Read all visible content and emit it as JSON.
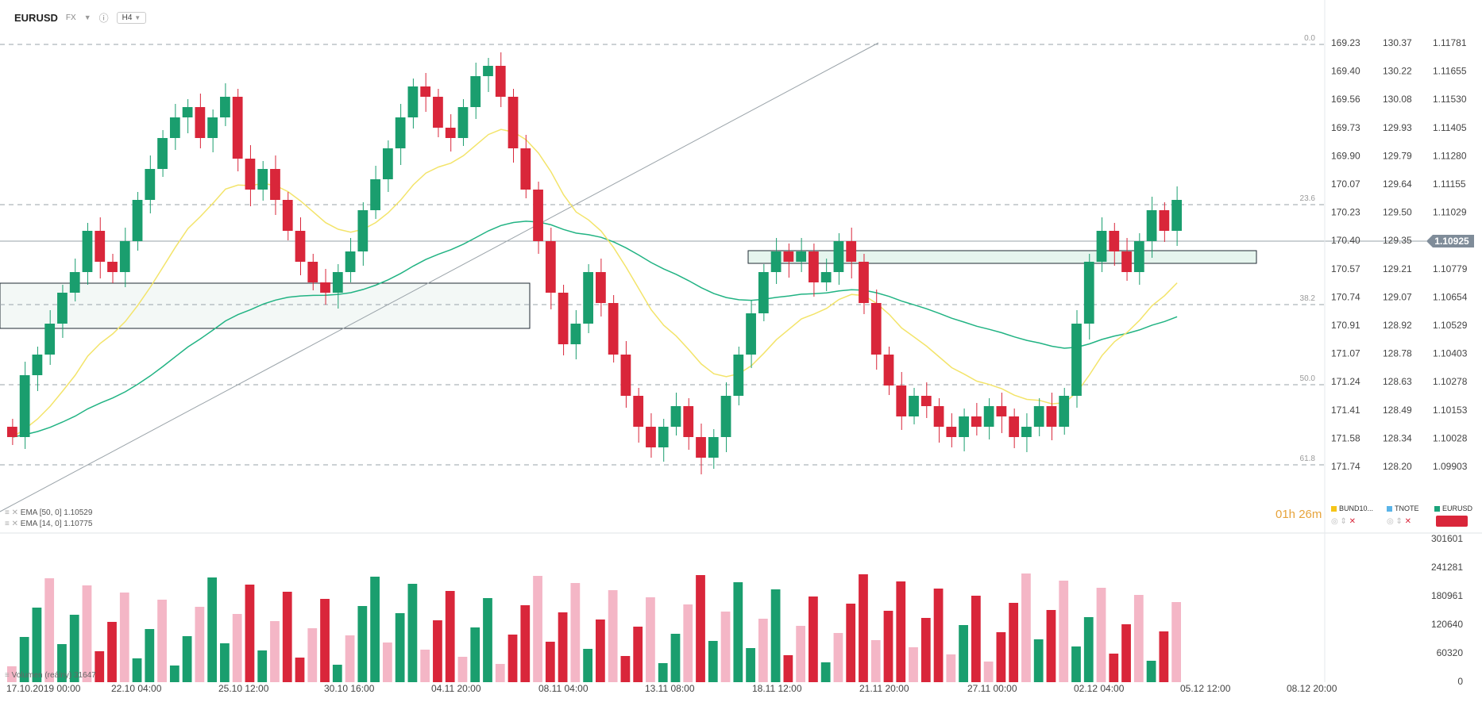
{
  "header": {
    "symbol": "EURUSD",
    "market": "FX",
    "timeframe": "H4"
  },
  "indicators": {
    "ema50": "EMA  [50, 0]  1.10529",
    "ema14": "EMA  [14, 0]  1.10775",
    "volume": "Volumen (reálny)  31647"
  },
  "timer": "01h 26m",
  "compare": {
    "items": [
      "BUND10...",
      "TNOTE",
      "EURUSD"
    ],
    "colors": [
      "#f5c518",
      "#5ab4e8",
      "#1aa37a"
    ]
  },
  "colors": {
    "up": "#1a9e6e",
    "down": "#d9263a",
    "ema50": "#21b383",
    "ema14": "#f3e46a",
    "lastPrice": "#7f8c99",
    "zone": "#e9f6f1",
    "volUp": "#1a9e6e",
    "volDown": "#d9263a",
    "volPink": "#f4b6c6"
  },
  "chart_data": {
    "type": "candlestick",
    "x_tick_labels": [
      "17.10.2019  00:00",
      "22.10  04:00",
      "25.10  12:00",
      "30.10  16:00",
      "04.11  20:00",
      "08.11  04:00",
      "13.11  08:00",
      "18.11  12:00",
      "21.11  20:00",
      "27.11  00:00",
      "02.12  04:00",
      "05.12  12:00",
      "08.12  20:00"
    ],
    "y_scale_main": [
      "1.11781",
      "1.11655",
      "1.11530",
      "1.11405",
      "1.11280",
      "1.11155",
      "1.11029",
      "1.10925",
      "1.10779",
      "1.10654",
      "1.10529",
      "1.10403",
      "1.10278",
      "1.10153",
      "1.10028",
      "1.09903"
    ],
    "y_scale_tnote": [
      "130.37",
      "130.22",
      "130.08",
      "129.93",
      "129.79",
      "129.64",
      "129.50",
      "129.35",
      "129.21",
      "129.07",
      "128.92",
      "128.78",
      "128.63",
      "128.49",
      "128.34",
      "128.20"
    ],
    "y_scale_bund": [
      "169.23",
      "169.40",
      "169.56",
      "169.73",
      "169.90",
      "170.07",
      "170.23",
      "170.40",
      "170.57",
      "170.74",
      "170.91",
      "171.07",
      "171.24",
      "171.41",
      "171.58",
      "171.74"
    ],
    "last_price": "1.10925",
    "fib_levels": [
      "0.0",
      "23.6",
      "38.2",
      "50.0",
      "61.8"
    ],
    "volume_scale": [
      "301601",
      "241281",
      "180961",
      "120640",
      "60320",
      "0"
    ],
    "ohlc_shape": [
      [
        0.4,
        0.3
      ],
      [
        0.3,
        0.9
      ],
      [
        0.9,
        1.1
      ],
      [
        1.1,
        1.4
      ],
      [
        1.4,
        1.7
      ],
      [
        1.7,
        1.9
      ],
      [
        1.9,
        2.3
      ],
      [
        2.3,
        2.0
      ],
      [
        2.0,
        1.9
      ],
      [
        1.9,
        2.2
      ],
      [
        2.2,
        2.6
      ],
      [
        2.6,
        2.9
      ],
      [
        2.9,
        3.2
      ],
      [
        3.2,
        3.4
      ],
      [
        3.4,
        3.5
      ],
      [
        3.5,
        3.2
      ],
      [
        3.2,
        3.4
      ],
      [
        3.4,
        3.6
      ],
      [
        3.6,
        3.0
      ],
      [
        3.0,
        2.7
      ],
      [
        2.7,
        2.9
      ],
      [
        2.9,
        2.6
      ],
      [
        2.6,
        2.3
      ],
      [
        2.3,
        2.0
      ],
      [
        2.0,
        1.8
      ],
      [
        1.8,
        1.7
      ],
      [
        1.7,
        1.9
      ],
      [
        1.9,
        2.1
      ],
      [
        2.1,
        2.5
      ],
      [
        2.5,
        2.8
      ],
      [
        2.8,
        3.1
      ],
      [
        3.1,
        3.4
      ],
      [
        3.4,
        3.7
      ],
      [
        3.7,
        3.6
      ],
      [
        3.6,
        3.3
      ],
      [
        3.3,
        3.2
      ],
      [
        3.2,
        3.5
      ],
      [
        3.5,
        3.8
      ],
      [
        3.8,
        3.9
      ],
      [
        3.9,
        3.6
      ],
      [
        3.6,
        3.1
      ],
      [
        3.1,
        2.7
      ],
      [
        2.7,
        2.2
      ],
      [
        2.2,
        1.7
      ],
      [
        1.7,
        1.2
      ],
      [
        1.2,
        1.4
      ],
      [
        1.4,
        1.9
      ],
      [
        1.9,
        1.6
      ],
      [
        1.6,
        1.1
      ],
      [
        1.1,
        0.7
      ],
      [
        0.7,
        0.4
      ],
      [
        0.4,
        0.2
      ],
      [
        0.2,
        0.4
      ],
      [
        0.4,
        0.6
      ],
      [
        0.6,
        0.3
      ],
      [
        0.3,
        0.1
      ],
      [
        0.1,
        0.3
      ],
      [
        0.3,
        0.7
      ],
      [
        0.7,
        1.1
      ],
      [
        1.1,
        1.5
      ],
      [
        1.5,
        1.9
      ],
      [
        1.9,
        2.1
      ],
      [
        2.1,
        2.0
      ],
      [
        2.0,
        2.1
      ],
      [
        2.1,
        1.8
      ],
      [
        1.8,
        1.9
      ],
      [
        1.9,
        2.2
      ],
      [
        2.2,
        2.0
      ],
      [
        2.0,
        1.6
      ],
      [
        1.6,
        1.1
      ],
      [
        1.1,
        0.8
      ],
      [
        0.8,
        0.5
      ],
      [
        0.5,
        0.7
      ],
      [
        0.7,
        0.6
      ],
      [
        0.6,
        0.4
      ],
      [
        0.4,
        0.3
      ],
      [
        0.3,
        0.5
      ],
      [
        0.5,
        0.4
      ],
      [
        0.4,
        0.6
      ],
      [
        0.6,
        0.5
      ],
      [
        0.5,
        0.3
      ],
      [
        0.3,
        0.4
      ],
      [
        0.4,
        0.6
      ],
      [
        0.6,
        0.4
      ],
      [
        0.4,
        0.7
      ],
      [
        0.7,
        1.4
      ],
      [
        1.4,
        2.0
      ],
      [
        2.0,
        2.3
      ],
      [
        2.3,
        2.1
      ],
      [
        2.1,
        1.9
      ],
      [
        1.9,
        2.2
      ],
      [
        2.2,
        2.5
      ],
      [
        2.5,
        2.3
      ],
      [
        2.3,
        2.6
      ]
    ]
  }
}
